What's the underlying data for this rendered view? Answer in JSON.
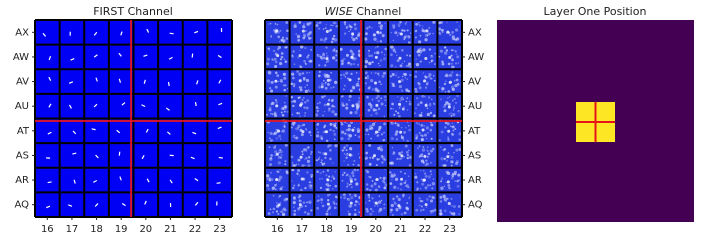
{
  "panels": [
    {
      "title": "FIRST Channel",
      "y_labels": [
        "AX",
        "AW",
        "AV",
        "AU",
        "AT",
        "AS",
        "AR",
        "AQ"
      ],
      "x_labels": [
        16,
        17,
        18,
        19,
        20,
        21,
        22,
        23
      ]
    },
    {
      "title_emphasis": "WISE",
      "title": "Channel",
      "y_labels": [
        "AX",
        "AW",
        "AV",
        "AU",
        "AT",
        "AS",
        "AR",
        "AQ"
      ],
      "x_labels": [
        16,
        17,
        18,
        19,
        20,
        21,
        22,
        23
      ]
    },
    {
      "title": "Layer One Position"
    }
  ]
}
